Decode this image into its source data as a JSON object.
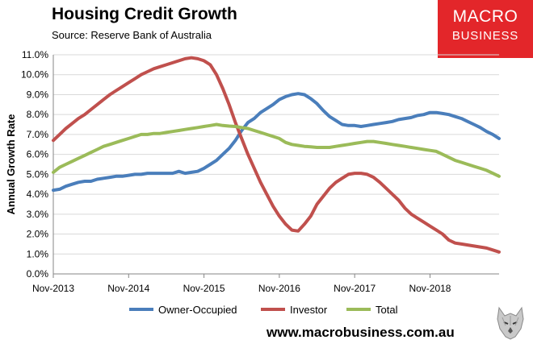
{
  "header": {
    "title": "Housing Credit Growth",
    "source": "Source: Reserve Bank of Australia"
  },
  "logo": {
    "line1": "MACRO",
    "line2": "BUSINESS"
  },
  "footer": {
    "url": "www.macrobusiness.com.au"
  },
  "colors": {
    "owner": "#4a7ebb",
    "investor": "#c0504d",
    "total": "#9bbb59",
    "logo_bg": "#e3262a"
  },
  "chart_data": {
    "type": "line",
    "title": "Housing Credit Growth",
    "ylabel": "Annual Growth Rate",
    "xlabel": "",
    "ylim": [
      0,
      11
    ],
    "yticks": [
      "0.0%",
      "1.0%",
      "2.0%",
      "3.0%",
      "4.0%",
      "5.0%",
      "6.0%",
      "7.0%",
      "8.0%",
      "9.0%",
      "10.0%",
      "11.0%"
    ],
    "xticks": [
      "Nov-2013",
      "Nov-2014",
      "Nov-2015",
      "Nov-2016",
      "Nov-2017",
      "Nov-2018"
    ],
    "x_start": "Nov-2013",
    "x_end": "Nov-2018",
    "grid": "horizontal",
    "legend": "bottom",
    "series": [
      {
        "name": "Owner-Occupied",
        "color": "#4a7ebb",
        "values": [
          4.2,
          4.25,
          4.4,
          4.5,
          4.6,
          4.65,
          4.65,
          4.75,
          4.8,
          4.85,
          4.9,
          4.9,
          4.95,
          5.0,
          5.0,
          5.05,
          5.05,
          5.05,
          5.05,
          5.05,
          5.15,
          5.05,
          5.1,
          5.15,
          5.3,
          5.5,
          5.7,
          6.0,
          6.3,
          6.7,
          7.2,
          7.6,
          7.8,
          8.1,
          8.3,
          8.5,
          8.75,
          8.9,
          9.0,
          9.05,
          9.0,
          8.8,
          8.55,
          8.2,
          7.9,
          7.7,
          7.5,
          7.45,
          7.45,
          7.4,
          7.45,
          7.5,
          7.55,
          7.6,
          7.65,
          7.75,
          7.8,
          7.85,
          7.95,
          8.0,
          8.1,
          8.1,
          8.05,
          8.0,
          7.9,
          7.8,
          7.65,
          7.5,
          7.35,
          7.15,
          7.0,
          6.8
        ]
      },
      {
        "name": "Investor",
        "color": "#c0504d",
        "values": [
          6.7,
          7.0,
          7.3,
          7.55,
          7.8,
          8.0,
          8.25,
          8.5,
          8.75,
          9.0,
          9.2,
          9.4,
          9.6,
          9.8,
          10.0,
          10.15,
          10.3,
          10.4,
          10.5,
          10.6,
          10.7,
          10.8,
          10.85,
          10.8,
          10.7,
          10.5,
          10.0,
          9.3,
          8.5,
          7.6,
          6.8,
          6.0,
          5.3,
          4.6,
          4.0,
          3.4,
          2.9,
          2.5,
          2.2,
          2.15,
          2.5,
          2.9,
          3.5,
          3.9,
          4.3,
          4.6,
          4.8,
          5.0,
          5.05,
          5.05,
          5.0,
          4.85,
          4.6,
          4.3,
          4.0,
          3.7,
          3.3,
          3.0,
          2.8,
          2.6,
          2.4,
          2.2,
          2.0,
          1.7,
          1.55,
          1.5,
          1.45,
          1.4,
          1.35,
          1.3,
          1.2,
          1.1
        ]
      },
      {
        "name": "Total",
        "color": "#9bbb59",
        "values": [
          5.1,
          5.35,
          5.5,
          5.65,
          5.8,
          5.95,
          6.1,
          6.25,
          6.4,
          6.5,
          6.6,
          6.7,
          6.8,
          6.9,
          7.0,
          7.0,
          7.05,
          7.05,
          7.1,
          7.15,
          7.2,
          7.25,
          7.3,
          7.35,
          7.4,
          7.45,
          7.5,
          7.45,
          7.42,
          7.4,
          7.35,
          7.3,
          7.2,
          7.1,
          7.0,
          6.9,
          6.8,
          6.6,
          6.5,
          6.45,
          6.4,
          6.38,
          6.35,
          6.35,
          6.35,
          6.4,
          6.45,
          6.5,
          6.55,
          6.6,
          6.65,
          6.65,
          6.6,
          6.55,
          6.5,
          6.45,
          6.4,
          6.35,
          6.3,
          6.25,
          6.2,
          6.15,
          6.0,
          5.85,
          5.7,
          5.6,
          5.5,
          5.4,
          5.3,
          5.2,
          5.05,
          4.9
        ]
      }
    ]
  }
}
